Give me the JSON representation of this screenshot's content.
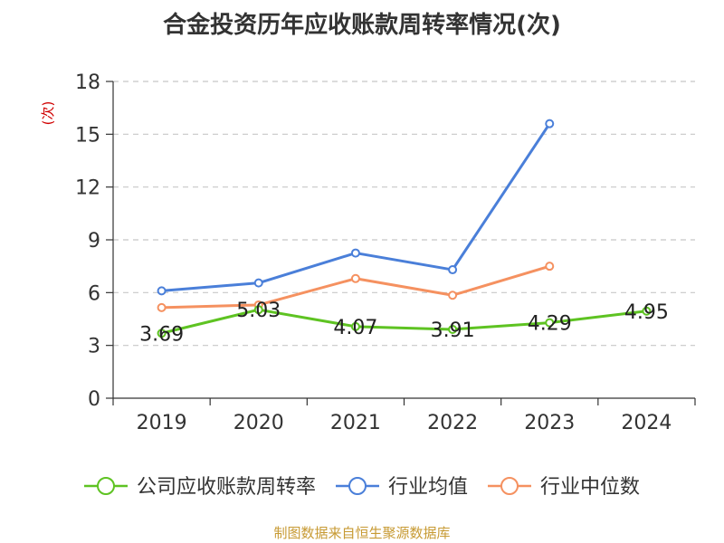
{
  "chart_data": {
    "type": "line",
    "title": "合金投资历年应收账款周转率情况(次)",
    "ylabel": "(次)",
    "xlabel": "",
    "categories": [
      "2019",
      "2020",
      "2021",
      "2022",
      "2023",
      "2024"
    ],
    "ylim": [
      0,
      18
    ],
    "yticks": [
      0,
      3,
      6,
      9,
      12,
      15,
      18
    ],
    "grid": true,
    "legend_position": "bottom",
    "series": [
      {
        "name": "公司应收账款周转率",
        "color": "#5ec322",
        "values": [
          3.69,
          5.03,
          4.07,
          3.91,
          4.29,
          4.95
        ],
        "labels": [
          "3.69",
          "5.03",
          "4.07",
          "3.91",
          "4.29",
          "4.95"
        ]
      },
      {
        "name": "行业均值",
        "color": "#4a7fd9",
        "values": [
          6.1,
          6.55,
          8.25,
          7.3,
          15.6,
          null
        ]
      },
      {
        "name": "行业中位数",
        "color": "#f59160",
        "values": [
          5.15,
          5.3,
          6.8,
          5.85,
          7.5,
          null
        ]
      }
    ]
  },
  "source": "制图数据来自恒生聚源数据库"
}
